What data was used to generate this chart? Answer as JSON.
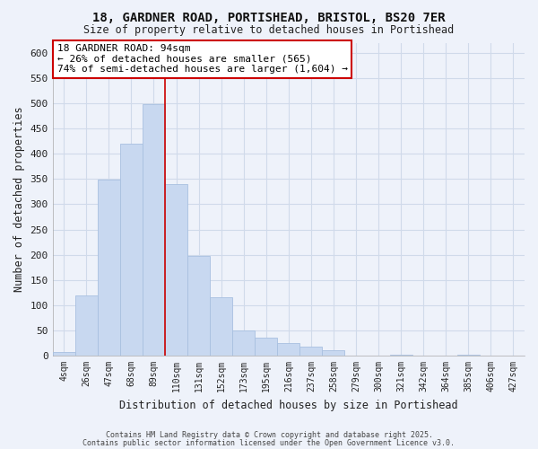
{
  "title1": "18, GARDNER ROAD, PORTISHEAD, BRISTOL, BS20 7ER",
  "title2": "Size of property relative to detached houses in Portishead",
  "xlabel": "Distribution of detached houses by size in Portishead",
  "ylabel": "Number of detached properties",
  "bar_labels": [
    "4sqm",
    "26sqm",
    "47sqm",
    "68sqm",
    "89sqm",
    "110sqm",
    "131sqm",
    "152sqm",
    "173sqm",
    "195sqm",
    "216sqm",
    "237sqm",
    "258sqm",
    "279sqm",
    "300sqm",
    "321sqm",
    "342sqm",
    "364sqm",
    "385sqm",
    "406sqm",
    "427sqm"
  ],
  "bar_values": [
    8,
    120,
    348,
    420,
    498,
    340,
    198,
    115,
    50,
    35,
    25,
    18,
    10,
    0,
    0,
    2,
    0,
    0,
    2,
    0,
    0
  ],
  "bar_color": "#c8d8f0",
  "bar_edge_color": "#a8c0e0",
  "vline_color": "#cc0000",
  "ylim": [
    0,
    620
  ],
  "yticks": [
    0,
    50,
    100,
    150,
    200,
    250,
    300,
    350,
    400,
    450,
    500,
    550,
    600
  ],
  "annotation_title": "18 GARDNER ROAD: 94sqm",
  "annotation_line1": "← 26% of detached houses are smaller (565)",
  "annotation_line2": "74% of semi-detached houses are larger (1,604) →",
  "annotation_box_facecolor": "#ffffff",
  "annotation_box_edgecolor": "#cc0000",
  "footer1": "Contains HM Land Registry data © Crown copyright and database right 2025.",
  "footer2": "Contains public sector information licensed under the Open Government Licence v3.0.",
  "grid_color": "#d0daea",
  "background_color": "#eef2fa",
  "vline_xindex": 4
}
